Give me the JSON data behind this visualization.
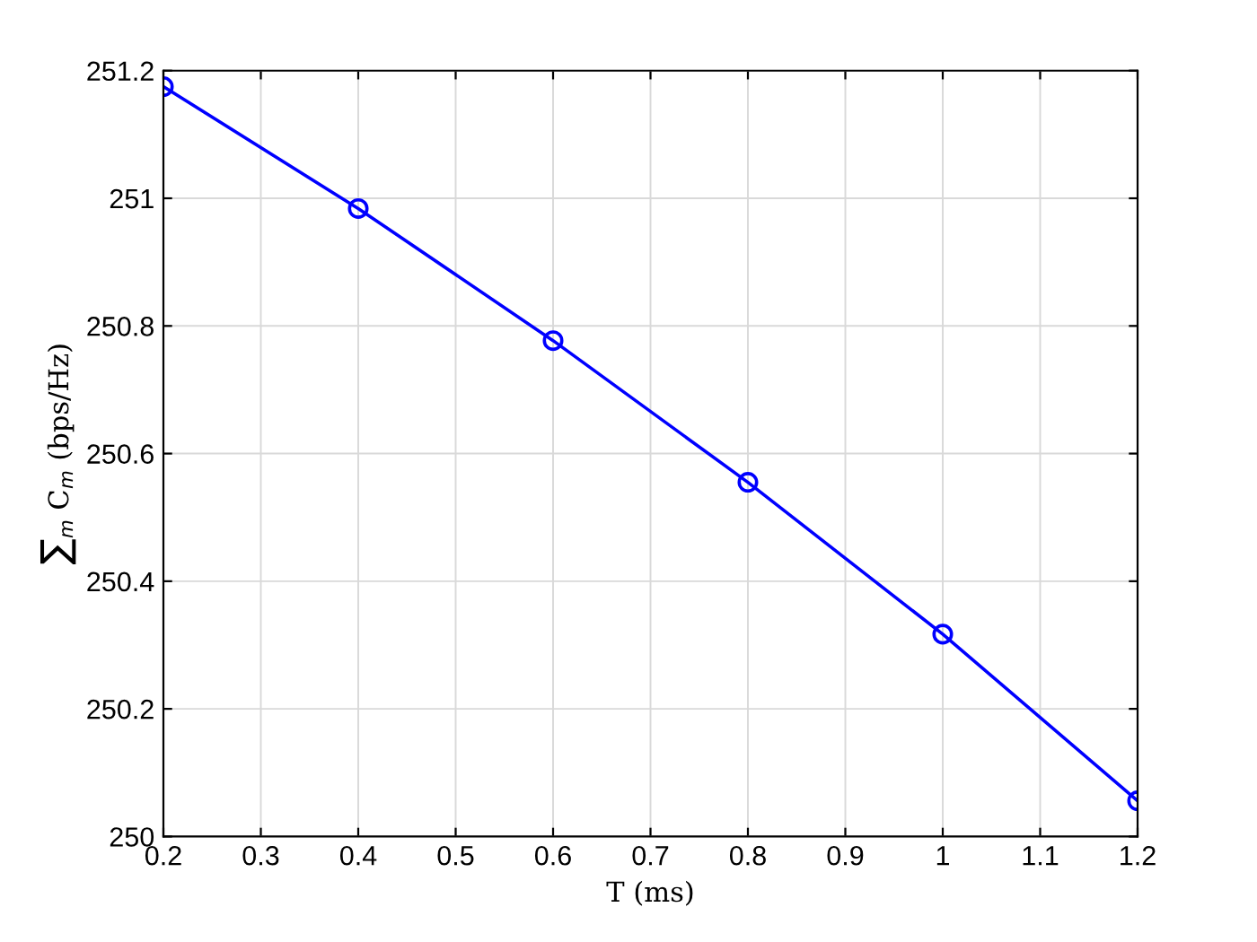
{
  "chart_data": {
    "type": "line",
    "xlabel": "T (ms)",
    "ylabel": "∑$_{m}$ C$_{m}$ (bps/Hz)",
    "x": [
      0.2,
      0.4,
      0.6,
      0.8,
      1.0,
      1.2
    ],
    "series": [
      {
        "color": "#0000ff",
        "values": [
          251.175,
          250.984,
          250.777,
          250.555,
          250.317,
          250.056
        ]
      }
    ],
    "xlim": [
      0.2,
      1.2
    ],
    "xticks": [
      0.2,
      0.3,
      0.4,
      0.5,
      0.6,
      0.7,
      0.8,
      0.9,
      1,
      1.1,
      1.2
    ],
    "ylim": [
      250,
      251.2
    ],
    "yticks": [
      250,
      250.2,
      250.4,
      250.6,
      250.8,
      251,
      251.2
    ],
    "grid": true,
    "marker": "circle",
    "line_style": "solid"
  }
}
